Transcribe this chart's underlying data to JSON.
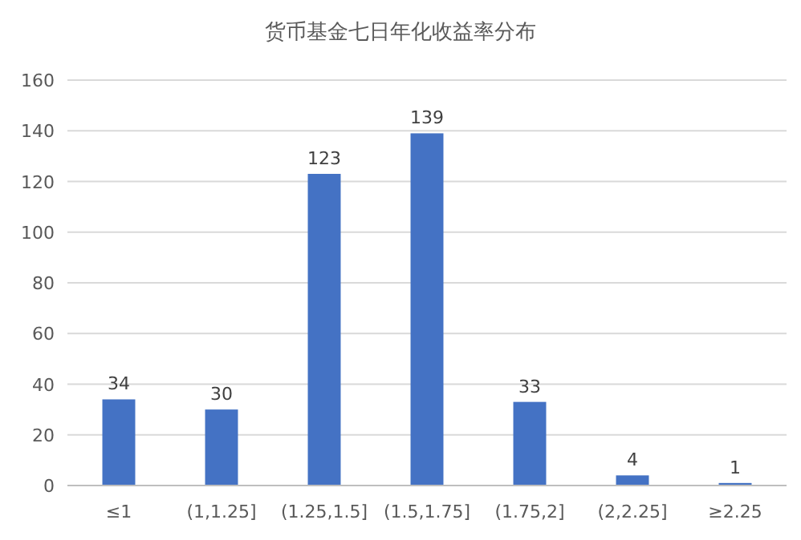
{
  "chart_data": {
    "type": "bar",
    "title": "货币基金七日年化收益率分布",
    "categories": [
      "≤1",
      "(1,1.25]",
      "(1.25,1.5]",
      "(1.5,1.75]",
      "(1.75,2]",
      "(2,2.25]",
      "≥2.25"
    ],
    "values": [
      34,
      30,
      123,
      139,
      33,
      4,
      1
    ],
    "color": "#4472c4",
    "data_labels": true,
    "ylim": [
      0,
      160
    ],
    "yticks": [
      0,
      20,
      40,
      60,
      80,
      100,
      120,
      140,
      160
    ],
    "grid": "y"
  }
}
